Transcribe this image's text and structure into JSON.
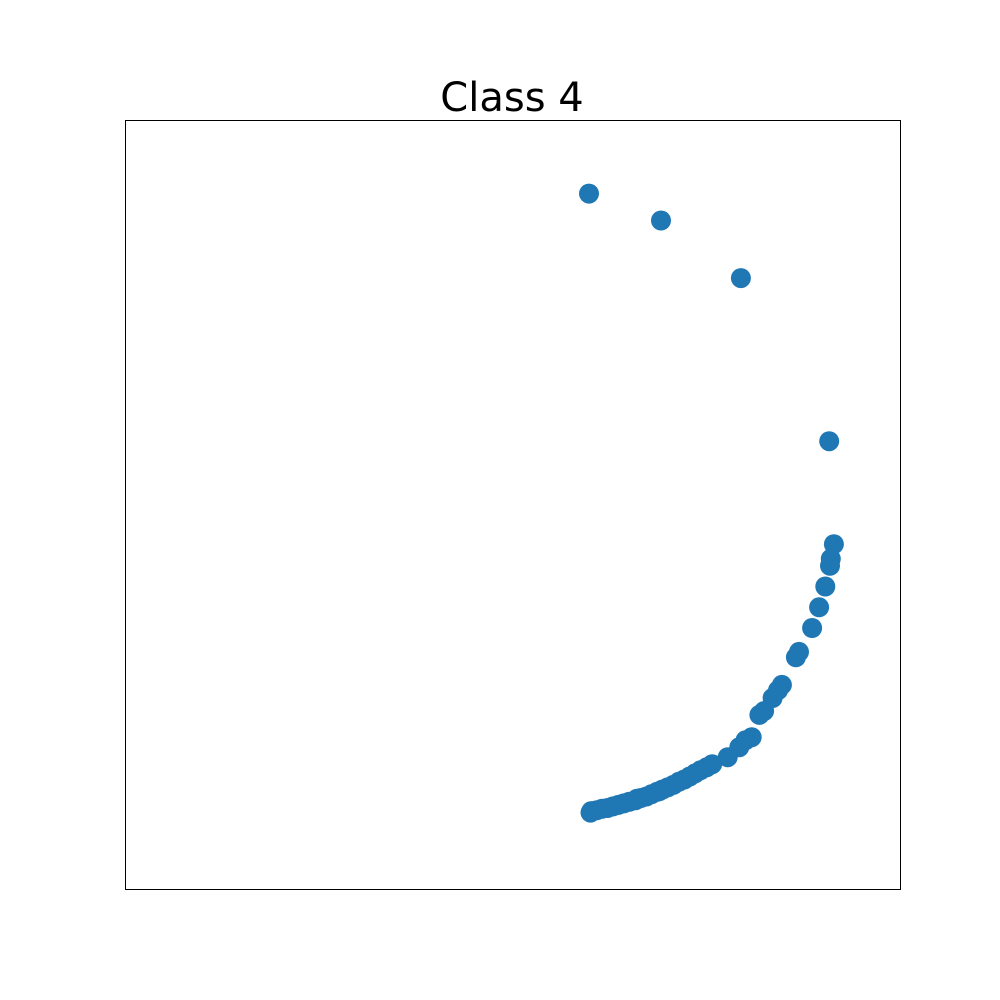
{
  "chart_data": {
    "type": "scatter",
    "title": "Class 4",
    "xlabel": "",
    "ylabel": "",
    "xlim": [
      0,
      1
    ],
    "ylim": [
      0,
      1
    ],
    "grid": false,
    "axes_ticks": false,
    "marker_color": "#1f77b4",
    "series": [
      {
        "points": [
          {
            "x": 0.598,
            "y": 0.905
          },
          {
            "x": 0.691,
            "y": 0.87
          },
          {
            "x": 0.794,
            "y": 0.795
          },
          {
            "x": 0.908,
            "y": 0.583
          },
          {
            "x": 0.914,
            "y": 0.449
          },
          {
            "x": 0.91,
            "y": 0.43
          },
          {
            "x": 0.909,
            "y": 0.421
          },
          {
            "x": 0.903,
            "y": 0.394
          },
          {
            "x": 0.895,
            "y": 0.367
          },
          {
            "x": 0.886,
            "y": 0.34
          },
          {
            "x": 0.869,
            "y": 0.309
          },
          {
            "x": 0.865,
            "y": 0.302
          },
          {
            "x": 0.847,
            "y": 0.266
          },
          {
            "x": 0.842,
            "y": 0.259
          },
          {
            "x": 0.835,
            "y": 0.249
          },
          {
            "x": 0.824,
            "y": 0.232
          },
          {
            "x": 0.818,
            "y": 0.227
          },
          {
            "x": 0.808,
            "y": 0.198
          },
          {
            "x": 0.8,
            "y": 0.194
          },
          {
            "x": 0.792,
            "y": 0.185
          },
          {
            "x": 0.777,
            "y": 0.172
          },
          {
            "x": 0.757,
            "y": 0.163
          },
          {
            "x": 0.75,
            "y": 0.159
          },
          {
            "x": 0.742,
            "y": 0.155
          },
          {
            "x": 0.735,
            "y": 0.151
          },
          {
            "x": 0.728,
            "y": 0.147
          },
          {
            "x": 0.721,
            "y": 0.143
          },
          {
            "x": 0.714,
            "y": 0.14
          },
          {
            "x": 0.707,
            "y": 0.136
          },
          {
            "x": 0.7,
            "y": 0.133
          },
          {
            "x": 0.693,
            "y": 0.13
          },
          {
            "x": 0.686,
            "y": 0.127
          },
          {
            "x": 0.679,
            "y": 0.124
          },
          {
            "x": 0.672,
            "y": 0.121
          },
          {
            "x": 0.665,
            "y": 0.119
          },
          {
            "x": 0.658,
            "y": 0.116
          },
          {
            "x": 0.65,
            "y": 0.114
          },
          {
            "x": 0.643,
            "y": 0.112
          },
          {
            "x": 0.636,
            "y": 0.11
          },
          {
            "x": 0.629,
            "y": 0.108
          },
          {
            "x": 0.622,
            "y": 0.106
          },
          {
            "x": 0.615,
            "y": 0.105
          },
          {
            "x": 0.608,
            "y": 0.103
          },
          {
            "x": 0.601,
            "y": 0.102
          },
          {
            "x": 0.6,
            "y": 0.1
          },
          {
            "x": 0.66,
            "y": 0.118
          },
          {
            "x": 0.689,
            "y": 0.128
          }
        ]
      }
    ]
  }
}
